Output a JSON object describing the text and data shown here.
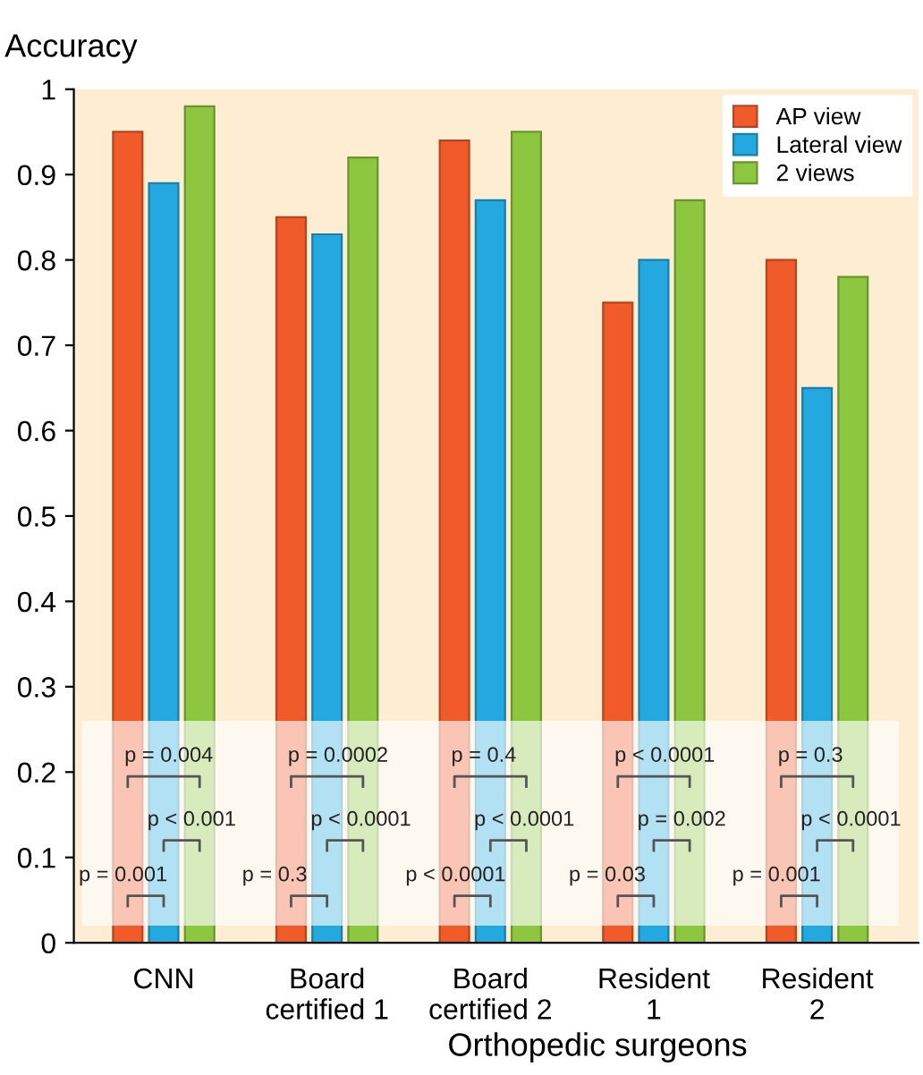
{
  "chart_data": {
    "type": "bar",
    "ylabel": "Accuracy",
    "xlabel": "Orthopedic surgeons",
    "categories": [
      "CNN",
      "Board\ncertified 1",
      "Board\ncertified 2",
      "Resident\n1",
      "Resident\n2"
    ],
    "series": [
      {
        "name": "AP view",
        "color": "#f15a29",
        "values": [
          0.95,
          0.85,
          0.94,
          0.75,
          0.8
        ]
      },
      {
        "name": "Lateral view",
        "color": "#23a9e0",
        "values": [
          0.89,
          0.83,
          0.87,
          0.8,
          0.65
        ]
      },
      {
        "name": "2 views",
        "color": "#8dc63f",
        "values": [
          0.98,
          0.92,
          0.95,
          0.87,
          0.78
        ]
      }
    ],
    "ylim": [
      0,
      1
    ],
    "yticks": [
      0,
      0.1,
      0.2,
      0.3,
      0.4,
      0.5,
      0.6,
      0.7,
      0.8,
      0.9,
      1
    ],
    "legend": "top right",
    "grid": false,
    "annotations": [
      "p = 0.004",
      "p < 0.001",
      "p = 0.001",
      "p = 0.0002",
      "p < 0.0001",
      "p = 0.3",
      "p = 0.4",
      "p < 0.0001",
      "p < 0.0001",
      "p < 0.0001",
      "p = 0.002",
      "p = 0.03",
      "p = 0.3",
      "p < 0.0001",
      "p = 0.001"
    ]
  }
}
